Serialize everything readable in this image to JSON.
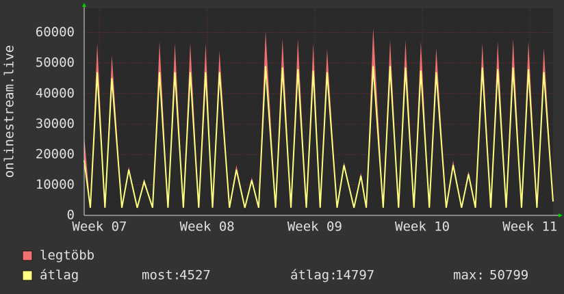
{
  "chart_data": {
    "type": "line",
    "y_label": "onlinestream.live",
    "x": [
      0,
      0.4,
      0.85,
      1.35,
      1.8,
      2.45,
      2.9,
      3.45,
      3.9,
      4.45,
      4.9,
      5.45,
      5.9,
      6.45,
      6.9,
      7.45,
      7.9,
      8.35,
      8.8,
      9.45,
      9.9,
      10.45,
      10.9,
      11.35,
      11.8,
      12.45,
      12.9,
      13.45,
      13.9,
      14.45,
      14.9,
      15.35,
      15.8,
      16.45,
      16.9,
      17.55,
      18.0,
      18.35,
      18.8,
      19.45,
      19.9,
      20.45,
      20.9,
      21.45,
      21.9,
      22.45,
      22.9,
      23.55,
      24.0,
      24.55,
      25.0,
      25.45,
      25.9,
      26.45,
      26.9,
      27.45,
      27.9,
      28.45,
      28.9,
      29.45,
      29.9,
      30.5
    ],
    "series": [
      {
        "name": "legtöbb",
        "color": "#f07070",
        "values": [
          26000,
          3000,
          56500,
          3000,
          52500,
          3000,
          16000,
          3000,
          12000,
          3000,
          57000,
          3000,
          56500,
          3000,
          56500,
          3000,
          56500,
          3000,
          54000,
          3000,
          16500,
          3000,
          12500,
          3000,
          60500,
          3000,
          58000,
          3000,
          58000,
          3000,
          56500,
          3000,
          54500,
          3000,
          17500,
          3000,
          14000,
          3000,
          61500,
          3000,
          57500,
          3000,
          57500,
          3000,
          57000,
          3000,
          55000,
          3000,
          18000,
          3000,
          14500,
          3000,
          56500,
          3000,
          57000,
          3000,
          58000,
          3000,
          57000,
          3000,
          55000,
          5000
        ]
      },
      {
        "name": "átlag",
        "color": "#ffff80",
        "values": [
          18000,
          2500,
          47000,
          2500,
          45000,
          2500,
          15000,
          2500,
          11000,
          2500,
          47000,
          2500,
          47000,
          2500,
          47000,
          2500,
          47000,
          2500,
          47000,
          2500,
          15000,
          2500,
          11500,
          2500,
          49000,
          2500,
          48500,
          2500,
          48000,
          2500,
          47500,
          2500,
          47000,
          2500,
          16500,
          2500,
          13000,
          2500,
          49000,
          2500,
          49000,
          2500,
          48500,
          2500,
          47500,
          2500,
          47000,
          2500,
          16500,
          2500,
          13500,
          2500,
          48500,
          2500,
          48000,
          2500,
          48500,
          2500,
          48000,
          2500,
          47000,
          4527
        ]
      }
    ],
    "xlim": [
      0,
      30.5
    ],
    "xticks": [
      {
        "value": 1,
        "label": "Week 07"
      },
      {
        "value": 8,
        "label": "Week 08"
      },
      {
        "value": 15,
        "label": "Week 09"
      },
      {
        "value": 22,
        "label": "Week 10"
      },
      {
        "value": 29,
        "label": "Week 11"
      }
    ],
    "ylim": [
      0,
      68000
    ],
    "yticks": [
      0,
      10000,
      20000,
      30000,
      40000,
      50000,
      60000
    ],
    "grid": true,
    "stats": [
      {
        "label": "most:",
        "value": 4527
      },
      {
        "label": "átlag:",
        "value": 14797
      },
      {
        "label": "max:",
        "value": 50799
      }
    ]
  }
}
